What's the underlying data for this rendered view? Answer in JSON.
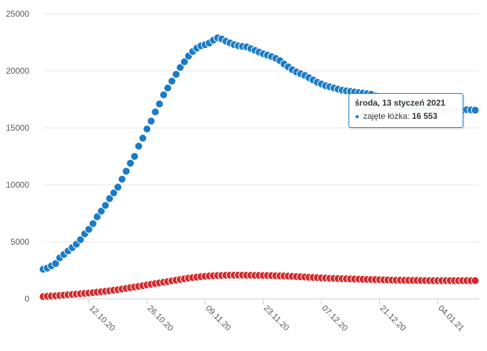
{
  "chart_data": {
    "type": "scatter",
    "y_ticks": [
      "0",
      "5000",
      "10000",
      "15000",
      "20000",
      "25000"
    ],
    "y_tick_values": [
      0,
      5000,
      10000,
      15000,
      20000,
      25000
    ],
    "ylim": [
      0,
      25000
    ],
    "x_ticks": [
      "12.10.20",
      "26.10.20",
      "09.11.20",
      "23.11.20",
      "07.12.20",
      "21.12.20",
      "04.01.21"
    ],
    "x_tick_dates": [
      "2020-10-12",
      "2020-10-26",
      "2020-11-09",
      "2020-11-23",
      "2020-12-07",
      "2020-12-21",
      "2021-01-04"
    ],
    "x_range": [
      "2020-10-01",
      "2021-01-13"
    ],
    "grid": true,
    "series": [
      {
        "name": "zajęte łóżka",
        "color": "#1a7cc6",
        "x": [
          "2020-10-01",
          "2020-10-02",
          "2020-10-03",
          "2020-10-04",
          "2020-10-05",
          "2020-10-06",
          "2020-10-07",
          "2020-10-08",
          "2020-10-09",
          "2020-10-10",
          "2020-10-11",
          "2020-10-12",
          "2020-10-13",
          "2020-10-14",
          "2020-10-15",
          "2020-10-16",
          "2020-10-17",
          "2020-10-18",
          "2020-10-19",
          "2020-10-20",
          "2020-10-21",
          "2020-10-22",
          "2020-10-23",
          "2020-10-24",
          "2020-10-25",
          "2020-10-26",
          "2020-10-27",
          "2020-10-28",
          "2020-10-29",
          "2020-10-30",
          "2020-10-31",
          "2020-11-01",
          "2020-11-02",
          "2020-11-03",
          "2020-11-04",
          "2020-11-05",
          "2020-11-06",
          "2020-11-07",
          "2020-11-08",
          "2020-11-09",
          "2020-11-10",
          "2020-11-11",
          "2020-11-12",
          "2020-11-13",
          "2020-11-14",
          "2020-11-15",
          "2020-11-16",
          "2020-11-17",
          "2020-11-18",
          "2020-11-19",
          "2020-11-20",
          "2020-11-21",
          "2020-11-22",
          "2020-11-23",
          "2020-11-24",
          "2020-11-25",
          "2020-11-26",
          "2020-11-27",
          "2020-11-28",
          "2020-11-29",
          "2020-11-30",
          "2020-12-01",
          "2020-12-02",
          "2020-12-03",
          "2020-12-04",
          "2020-12-05",
          "2020-12-06",
          "2020-12-07",
          "2020-12-08",
          "2020-12-09",
          "2020-12-10",
          "2020-12-11",
          "2020-12-12",
          "2020-12-13",
          "2020-12-14",
          "2020-12-15",
          "2020-12-16",
          "2020-12-17",
          "2020-12-18",
          "2020-12-19",
          "2020-12-20",
          "2020-12-21",
          "2020-12-22",
          "2020-12-23",
          "2020-12-24",
          "2020-12-25",
          "2020-12-26",
          "2020-12-27",
          "2020-12-28",
          "2020-12-29",
          "2020-12-30",
          "2020-12-31",
          "2021-01-01",
          "2021-01-02",
          "2021-01-03",
          "2021-01-04",
          "2021-01-05",
          "2021-01-06",
          "2021-01-07",
          "2021-01-08",
          "2021-01-09",
          "2021-01-10",
          "2021-01-11",
          "2021-01-12",
          "2021-01-13"
        ],
        "values": [
          2600,
          2700,
          2900,
          3100,
          3600,
          3900,
          4200,
          4500,
          4800,
          5200,
          5700,
          6100,
          6600,
          7200,
          7700,
          8200,
          8800,
          9300,
          9800,
          10500,
          11200,
          11900,
          12500,
          13400,
          14100,
          14900,
          15600,
          16400,
          17100,
          17900,
          18500,
          19100,
          19700,
          20300,
          20800,
          21300,
          21700,
          22000,
          22200,
          22300,
          22450,
          22700,
          22900,
          22800,
          22600,
          22450,
          22300,
          22200,
          22150,
          22100,
          21950,
          21800,
          21650,
          21500,
          21380,
          21250,
          21100,
          20900,
          20600,
          20350,
          20100,
          19900,
          19750,
          19600,
          19400,
          19200,
          19000,
          18850,
          18700,
          18600,
          18500,
          18400,
          18300,
          18250,
          18200,
          18150,
          18100,
          18050,
          18000,
          17950,
          17800,
          17600,
          17400,
          17250,
          17100,
          17000,
          16900,
          16850,
          16800,
          16750,
          16700,
          16700,
          16750,
          16700,
          16650,
          16600,
          16600,
          16550,
          16600,
          16600,
          16550,
          16550,
          16600,
          16580,
          16553
        ]
      },
      {
        "color": "#d1292b",
        "x": [
          "2020-10-01",
          "2020-10-02",
          "2020-10-03",
          "2020-10-04",
          "2020-10-05",
          "2020-10-06",
          "2020-10-07",
          "2020-10-08",
          "2020-10-09",
          "2020-10-10",
          "2020-10-11",
          "2020-10-12",
          "2020-10-13",
          "2020-10-14",
          "2020-10-15",
          "2020-10-16",
          "2020-10-17",
          "2020-10-18",
          "2020-10-19",
          "2020-10-20",
          "2020-10-21",
          "2020-10-22",
          "2020-10-23",
          "2020-10-24",
          "2020-10-25",
          "2020-10-26",
          "2020-10-27",
          "2020-10-28",
          "2020-10-29",
          "2020-10-30",
          "2020-10-31",
          "2020-11-01",
          "2020-11-02",
          "2020-11-03",
          "2020-11-04",
          "2020-11-05",
          "2020-11-06",
          "2020-11-07",
          "2020-11-08",
          "2020-11-09",
          "2020-11-10",
          "2020-11-11",
          "2020-11-12",
          "2020-11-13",
          "2020-11-14",
          "2020-11-15",
          "2020-11-16",
          "2020-11-17",
          "2020-11-18",
          "2020-11-19",
          "2020-11-20",
          "2020-11-21",
          "2020-11-22",
          "2020-11-23",
          "2020-11-24",
          "2020-11-25",
          "2020-11-26",
          "2020-11-27",
          "2020-11-28",
          "2020-11-29",
          "2020-11-30",
          "2020-12-01",
          "2020-12-02",
          "2020-12-03",
          "2020-12-04",
          "2020-12-05",
          "2020-12-06",
          "2020-12-07",
          "2020-12-08",
          "2020-12-09",
          "2020-12-10",
          "2020-12-11",
          "2020-12-12",
          "2020-12-13",
          "2020-12-14",
          "2020-12-15",
          "2020-12-16",
          "2020-12-17",
          "2020-12-18",
          "2020-12-19",
          "2020-12-20",
          "2020-12-21",
          "2020-12-22",
          "2020-12-23",
          "2020-12-24",
          "2020-12-25",
          "2020-12-26",
          "2020-12-27",
          "2020-12-28",
          "2020-12-29",
          "2020-12-30",
          "2020-12-31",
          "2021-01-01",
          "2021-01-02",
          "2021-01-03",
          "2021-01-04",
          "2021-01-05",
          "2021-01-06",
          "2021-01-07",
          "2021-01-08",
          "2021-01-09",
          "2021-01-10",
          "2021-01-11",
          "2021-01-12",
          "2021-01-13"
        ],
        "values": [
          200,
          230,
          250,
          270,
          300,
          330,
          360,
          390,
          420,
          450,
          480,
          510,
          550,
          590,
          630,
          670,
          710,
          760,
          810,
          860,
          920,
          980,
          1040,
          1100,
          1160,
          1220,
          1280,
          1340,
          1400,
          1460,
          1520,
          1580,
          1640,
          1700,
          1760,
          1820,
          1870,
          1910,
          1950,
          1980,
          2010,
          2030,
          2050,
          2060,
          2070,
          2080,
          2080,
          2080,
          2080,
          2070,
          2070,
          2060,
          2060,
          2050,
          2050,
          2040,
          2030,
          2020,
          2010,
          2000,
          1980,
          1960,
          1940,
          1920,
          1900,
          1880,
          1860,
          1840,
          1820,
          1800,
          1790,
          1780,
          1770,
          1760,
          1750,
          1740,
          1730,
          1720,
          1710,
          1700,
          1690,
          1680,
          1670,
          1660,
          1650,
          1640,
          1640,
          1630,
          1630,
          1620,
          1620,
          1610,
          1610,
          1600,
          1600,
          1600,
          1600,
          1600,
          1600,
          1600,
          1600,
          1600,
          1600,
          1600,
          1600
        ]
      }
    ],
    "tooltip": {
      "title": "środa, 13 styczeń 2021",
      "series_label": "zajęte łóżka",
      "separator": ":",
      "value": "16 553"
    }
  }
}
